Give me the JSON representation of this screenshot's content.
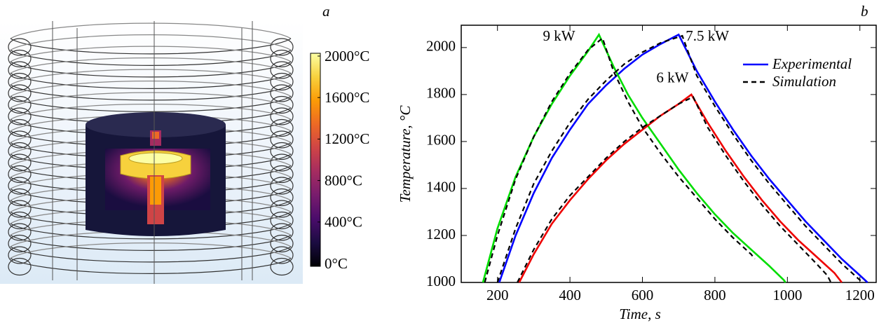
{
  "chart_data": [
    {
      "type": "colorbar",
      "panel": "a",
      "lim": [
        0,
        2000
      ],
      "colors": [
        "#000004",
        "#1b0c41",
        "#4a0c6b",
        "#781c6d",
        "#a52c60",
        "#cf4446",
        "#ed6925",
        "#fb9b06",
        "#f7d13d",
        "#fcffa4"
      ],
      "ticks": [
        {
          "value": 0,
          "label": "0°C"
        },
        {
          "value": 400,
          "label": "400°C"
        },
        {
          "value": 800,
          "label": "800°C"
        },
        {
          "value": 1200,
          "label": "1200°C"
        },
        {
          "value": 1600,
          "label": "1600°C"
        },
        {
          "value": 2000,
          "label": "2000°C"
        }
      ]
    },
    {
      "type": "line",
      "panel": "b",
      "xlabel": "Time, s",
      "ylabel": "Temperature, °C",
      "xlim": [
        100,
        1245
      ],
      "ylim": [
        1000,
        2095
      ],
      "xticks": [
        200,
        400,
        600,
        800,
        1000,
        1200
      ],
      "yticks": [
        1000,
        1200,
        1400,
        1600,
        1800,
        2000
      ],
      "legend": "top-right",
      "series": [
        {
          "name": "Experimental",
          "power": "7.5 kW",
          "color": "#0000ff",
          "dashed": false,
          "x": [
            205,
            250,
            300,
            350,
            400,
            450,
            500,
            550,
            600,
            650,
            700,
            750,
            800,
            850,
            900,
            950,
            1000,
            1050,
            1100,
            1150,
            1200,
            1221
          ],
          "values": [
            1000,
            1200,
            1380,
            1530,
            1650,
            1760,
            1840,
            1910,
            1970,
            2015,
            2055,
            1900,
            1770,
            1650,
            1540,
            1440,
            1350,
            1260,
            1180,
            1100,
            1030,
            1000
          ]
        },
        {
          "name": "Experimental",
          "power": "9 kW",
          "color": "#00dd00",
          "dashed": false,
          "x": [
            160,
            200,
            250,
            300,
            350,
            400,
            450,
            480,
            520,
            560,
            600,
            650,
            700,
            750,
            800,
            850,
            900,
            950,
            990,
            995
          ],
          "values": [
            1000,
            1230,
            1450,
            1620,
            1760,
            1880,
            1985,
            2055,
            1920,
            1800,
            1700,
            1590,
            1480,
            1380,
            1290,
            1210,
            1140,
            1070,
            1010,
            1000
          ]
        },
        {
          "name": "Experimental",
          "power": "6 kW",
          "color": "#ee0000",
          "dashed": false,
          "x": [
            260,
            300,
            350,
            400,
            450,
            500,
            550,
            600,
            650,
            700,
            735,
            780,
            830,
            880,
            930,
            980,
            1030,
            1080,
            1130,
            1150
          ],
          "values": [
            1000,
            1120,
            1250,
            1350,
            1440,
            1520,
            1590,
            1650,
            1710,
            1760,
            1800,
            1680,
            1560,
            1450,
            1350,
            1260,
            1180,
            1110,
            1040,
            1000
          ]
        },
        {
          "name": "Simulation",
          "color": "#000000",
          "dashed": true,
          "x": [
            200,
            250,
            300,
            350,
            400,
            450,
            500,
            550,
            600,
            650,
            710,
            750,
            800,
            850,
            900,
            950,
            1000,
            1050,
            1100,
            1150,
            1200,
            1210
          ],
          "values": [
            1000,
            1230,
            1420,
            1560,
            1680,
            1780,
            1860,
            1930,
            1980,
            2020,
            2050,
            1880,
            1750,
            1630,
            1520,
            1420,
            1330,
            1240,
            1160,
            1080,
            1010,
            1000
          ]
        },
        {
          "name": "Simulation",
          "color": "#000000",
          "dashed": true,
          "x": [
            165,
            200,
            250,
            300,
            350,
            400,
            450,
            490,
            520,
            560,
            600,
            650,
            700,
            750,
            800,
            850,
            900,
            910
          ],
          "values": [
            1000,
            1200,
            1440,
            1620,
            1770,
            1890,
            1990,
            2040,
            1900,
            1770,
            1660,
            1550,
            1450,
            1360,
            1270,
            1190,
            1120,
            1100
          ]
        },
        {
          "name": "Simulation",
          "color": "#000000",
          "dashed": true,
          "x": [
            255,
            300,
            350,
            400,
            450,
            500,
            550,
            600,
            650,
            700,
            740,
            780,
            830,
            880,
            930,
            980,
            1030,
            1080,
            1110,
            1120
          ],
          "values": [
            1000,
            1140,
            1270,
            1370,
            1450,
            1530,
            1600,
            1660,
            1710,
            1760,
            1790,
            1660,
            1540,
            1430,
            1330,
            1240,
            1160,
            1080,
            1030,
            1000
          ]
        }
      ]
    }
  ]
}
